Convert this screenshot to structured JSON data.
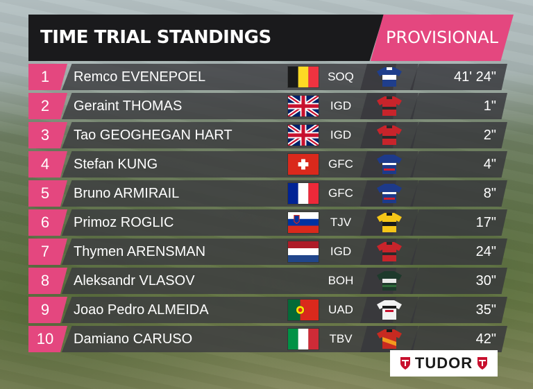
{
  "header": {
    "title": "TIME TRIAL STANDINGS",
    "status": "PROVISIONAL"
  },
  "sponsor": {
    "name": "TUDOR"
  },
  "colors": {
    "accent": "#e4477f",
    "header_bg": "#1a1a1c",
    "row_bg": "#3c3c40"
  },
  "standings": [
    {
      "rank": "1",
      "name": "Remco EVENEPOEL",
      "flag": "belgium-flag",
      "team": "SOQ",
      "jersey": "soudal-quickstep-jersey",
      "time": "41' 24\""
    },
    {
      "rank": "2",
      "name": "Geraint THOMAS",
      "flag": "uk-flag",
      "team": "IGD",
      "jersey": "ineos-grenadiers-jersey",
      "time": "1\""
    },
    {
      "rank": "3",
      "name": "Tao GEOGHEGAN HART",
      "flag": "uk-flag",
      "team": "IGD",
      "jersey": "ineos-grenadiers-jersey",
      "time": "2\""
    },
    {
      "rank": "4",
      "name": "Stefan KUNG",
      "flag": "switzerland-flag",
      "team": "GFC",
      "jersey": "groupama-fdj-jersey",
      "time": "4\""
    },
    {
      "rank": "5",
      "name": "Bruno ARMIRAIL",
      "flag": "france-flag",
      "team": "GFC",
      "jersey": "groupama-fdj-jersey",
      "time": "8\""
    },
    {
      "rank": "6",
      "name": "Primoz ROGLIC",
      "flag": "slovenia-flag",
      "team": "TJV",
      "jersey": "jumbo-visma-jersey",
      "time": "17\""
    },
    {
      "rank": "7",
      "name": "Thymen ARENSMAN",
      "flag": "netherlands-flag",
      "team": "IGD",
      "jersey": "ineos-grenadiers-jersey",
      "time": "24\""
    },
    {
      "rank": "8",
      "name": "Aleksandr VLASOV",
      "flag": "",
      "team": "BOH",
      "jersey": "bora-hansgrohe-jersey",
      "time": "30\""
    },
    {
      "rank": "9",
      "name": "Joao Pedro ALMEIDA",
      "flag": "portugal-flag",
      "team": "UAD",
      "jersey": "uae-team-emirates-jersey",
      "time": "35\""
    },
    {
      "rank": "10",
      "name": "Damiano CARUSO",
      "flag": "italy-flag",
      "team": "TBV",
      "jersey": "bahrain-victorious-jersey",
      "time": "42\""
    }
  ]
}
